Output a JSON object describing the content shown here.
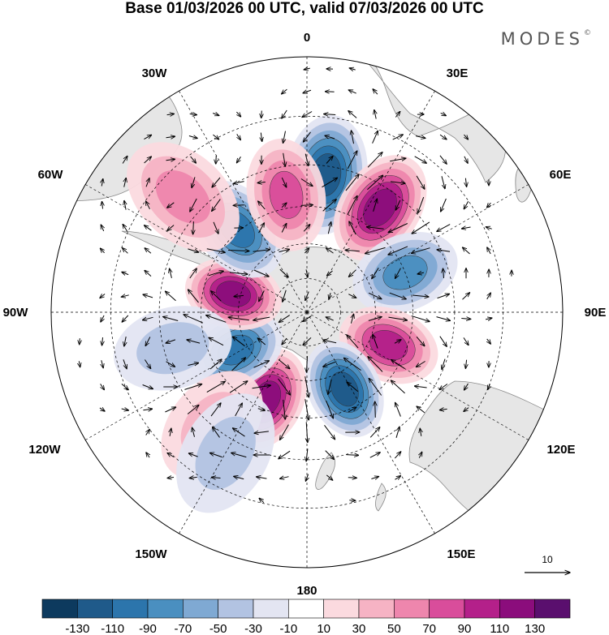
{
  "title": "Base 01/03/2026 00 UTC, valid 07/03/2026 00 UTC",
  "brand": "MODES",
  "brand_mark": "©",
  "longitude_labels": {
    "lon_0": "0",
    "lon_30e": "30E",
    "lon_60e": "60E",
    "lon_90e": "90E",
    "lon_120e": "120E",
    "lon_150e": "150E",
    "lon_180": "180",
    "lon_150w": "150W",
    "lon_120w": "120W",
    "lon_90w": "90W",
    "lon_60w": "60W",
    "lon_30w": "30W"
  },
  "reference_vector": {
    "label": "10"
  },
  "colorbar": {
    "ticks": [
      "-130",
      "-110",
      "-90",
      "-70",
      "-50",
      "-30",
      "-10",
      "10",
      "30",
      "50",
      "70",
      "90",
      "110",
      "130"
    ],
    "colors": [
      "#0d3a5e",
      "#1f5a8a",
      "#2c75ac",
      "#4a8fc0",
      "#7fa9d3",
      "#b2c3e2",
      "#e3e5f2",
      "#ffffff",
      "#fbdadf",
      "#f6b3c4",
      "#ee86ad",
      "#d94d9b",
      "#b4208a",
      "#8b0d7c",
      "#5a0f6e"
    ]
  },
  "colors": {
    "background": "#ffffff",
    "land": "#e4e4e4",
    "coast": "#8a8a8a",
    "grid": "#000000"
  },
  "anomaly_field": {
    "units": "streamfunction anomaly (colorbar units)",
    "centers": [
      {
        "name": "south-atlantic-low",
        "lon": 8,
        "lat": -33,
        "value": -110
      },
      {
        "name": "south-africa-high",
        "lon": 35,
        "lat": -37,
        "value": 125
      },
      {
        "name": "indian-ocean-low",
        "lon": 68,
        "lat": -45,
        "value": -80
      },
      {
        "name": "south-indian-high",
        "lon": 112,
        "lat": -52,
        "value": 90
      },
      {
        "name": "tasman-low",
        "lon": 154,
        "lat": -53,
        "value": -110
      },
      {
        "name": "south-pacific-high",
        "lon": -155,
        "lat": -49,
        "value": 110
      },
      {
        "name": "pacific-low",
        "lon": -118,
        "lat": -55,
        "value": -100
      },
      {
        "name": "drake-high",
        "lon": -76,
        "lat": -57,
        "value": 125
      },
      {
        "name": "argentine-low",
        "lon": -40,
        "lat": -44,
        "value": -95
      },
      {
        "name": "atlantic-high",
        "lon": -10,
        "lat": -40,
        "value": 70
      },
      {
        "name": "brazil-high",
        "lon": -47,
        "lat": -23,
        "value": 50
      },
      {
        "name": "east-pacific-low",
        "lon": -105,
        "lat": -33,
        "value": -40
      },
      {
        "name": "far-pacific-high",
        "lon": -140,
        "lat": -30,
        "value": 40
      },
      {
        "name": "south-pacific-low-2",
        "lon": -150,
        "lat": -25,
        "value": -30
      }
    ]
  }
}
